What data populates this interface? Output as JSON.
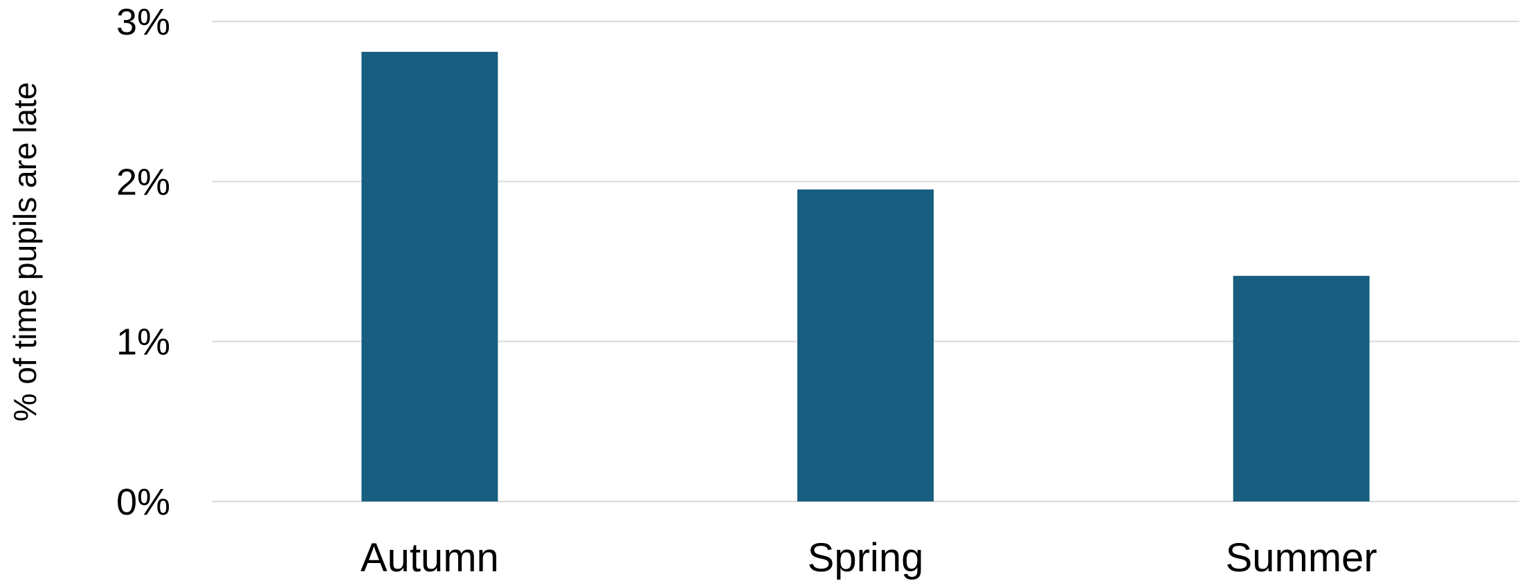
{
  "chart_data": {
    "type": "bar",
    "title": "",
    "xlabel": "",
    "ylabel": "% of time pupils are late",
    "categories": [
      "Autumn",
      "Spring",
      "Summer"
    ],
    "values": [
      2.81,
      1.95,
      1.41
    ],
    "ylim": [
      0,
      3
    ],
    "yticks": [
      0,
      1,
      2,
      3
    ],
    "ytick_labels": [
      "0%",
      "1%",
      "2%",
      "3%"
    ],
    "grid": true,
    "legend": "none",
    "bar_color": "#175e80"
  }
}
